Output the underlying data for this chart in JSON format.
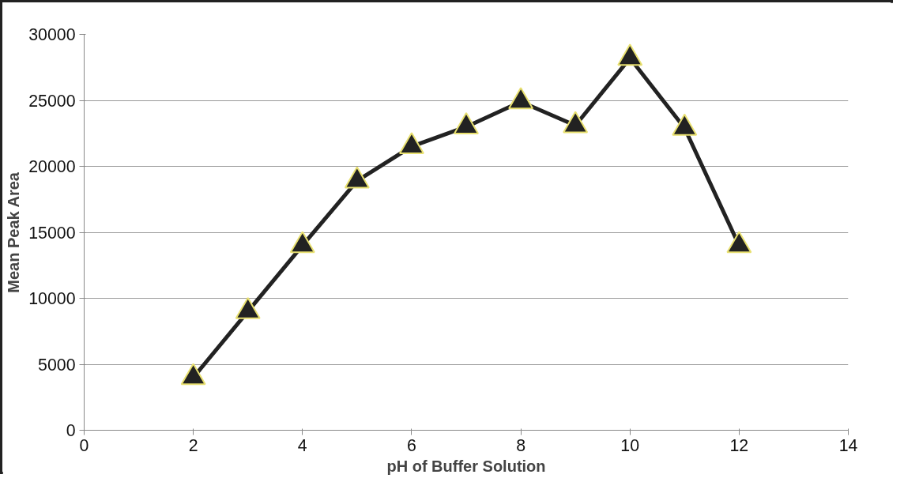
{
  "chart_data": {
    "type": "line",
    "xlabel": "pH of Buffer Solution",
    "ylabel": "Mean Peak Area",
    "x": [
      2,
      3,
      4,
      5,
      6,
      7,
      8,
      9,
      10,
      11,
      12
    ],
    "series": [
      {
        "color": "#222222",
        "values": [
          4000,
          9000,
          14000,
          18900,
          21500,
          23000,
          24900,
          23100,
          28200,
          22900,
          14000
        ]
      }
    ],
    "xlim": [
      0,
      14
    ],
    "xticks": [
      0,
      2,
      4,
      6,
      8,
      10,
      12,
      14
    ],
    "ylim": [
      0,
      30000
    ],
    "yticks": [
      0,
      5000,
      10000,
      15000,
      20000,
      25000,
      30000
    ],
    "grid": "y",
    "marker": "triangle",
    "line_style": "solid"
  }
}
